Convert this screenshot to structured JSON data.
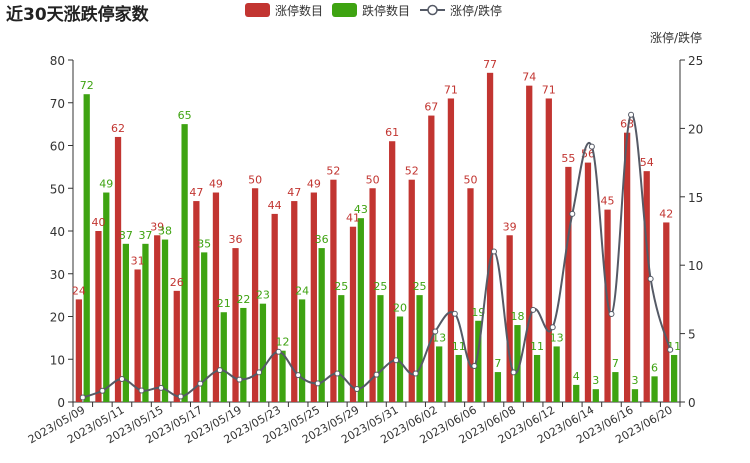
{
  "chart_data": {
    "type": "bar",
    "title": "近30天涨跌停家数",
    "xlabel": "",
    "ylabel": "",
    "y2label": "涨停/跌停",
    "ylim": [
      0,
      80
    ],
    "y2lim": [
      0,
      25
    ],
    "yticks": [
      0,
      10,
      20,
      30,
      40,
      50,
      60,
      70,
      80
    ],
    "y2ticks": [
      0,
      5,
      10,
      15,
      20,
      25
    ],
    "legend_position": "top-center",
    "grid": false,
    "categories": [
      "2023/05/09",
      "2023/05/10",
      "2023/05/11",
      "2023/05/12",
      "2023/05/15",
      "2023/05/16",
      "2023/05/17",
      "2023/05/18",
      "2023/05/19",
      "2023/05/22",
      "2023/05/23",
      "2023/05/24",
      "2023/05/25",
      "2023/05/26",
      "2023/05/29",
      "2023/05/30",
      "2023/05/31",
      "2023/06/01",
      "2023/06/02",
      "2023/06/05",
      "2023/06/06",
      "2023/06/07",
      "2023/06/08",
      "2023/06/09",
      "2023/06/12",
      "2023/06/13",
      "2023/06/14",
      "2023/06/15",
      "2023/06/16",
      "2023/06/19",
      "2023/06/20"
    ],
    "xtick_labels_shown": [
      "2023/05/09",
      "2023/05/11",
      "2023/05/15",
      "2023/05/17",
      "2023/05/19",
      "2023/05/23",
      "2023/05/25",
      "2023/05/29",
      "2023/05/31",
      "2023/06/02",
      "2023/06/06",
      "2023/06/08",
      "2023/06/12",
      "2023/06/14",
      "2023/06/16",
      "2023/06/20"
    ],
    "series": [
      {
        "name": "涨停数目",
        "type": "bar",
        "axis": "left",
        "color": "#c23531",
        "values": [
          24,
          40,
          62,
          31,
          39,
          26,
          47,
          49,
          36,
          50,
          44,
          47,
          49,
          52,
          41,
          50,
          61,
          52,
          67,
          71,
          50,
          77,
          39,
          74,
          71,
          55,
          56,
          45,
          63,
          54,
          42
        ]
      },
      {
        "name": "跌停数目",
        "type": "bar",
        "axis": "left",
        "color": "#3ea311",
        "values": [
          72,
          49,
          37,
          37,
          38,
          65,
          35,
          21,
          22,
          23,
          12,
          24,
          36,
          25,
          43,
          25,
          20,
          25,
          13,
          11,
          19,
          7,
          18,
          11,
          13,
          4,
          3,
          7,
          3,
          6,
          11
        ]
      },
      {
        "name": "涨停/跌停",
        "type": "line",
        "axis": "right",
        "color": "#555a66",
        "values": [
          0.33,
          0.82,
          1.68,
          0.84,
          1.03,
          0.4,
          1.34,
          2.33,
          1.64,
          2.17,
          3.67,
          1.96,
          1.36,
          2.08,
          0.95,
          2.0,
          3.05,
          2.08,
          5.15,
          6.45,
          2.63,
          11.0,
          2.17,
          6.73,
          5.46,
          13.75,
          18.67,
          6.43,
          21.0,
          9.0,
          3.82
        ]
      }
    ]
  }
}
